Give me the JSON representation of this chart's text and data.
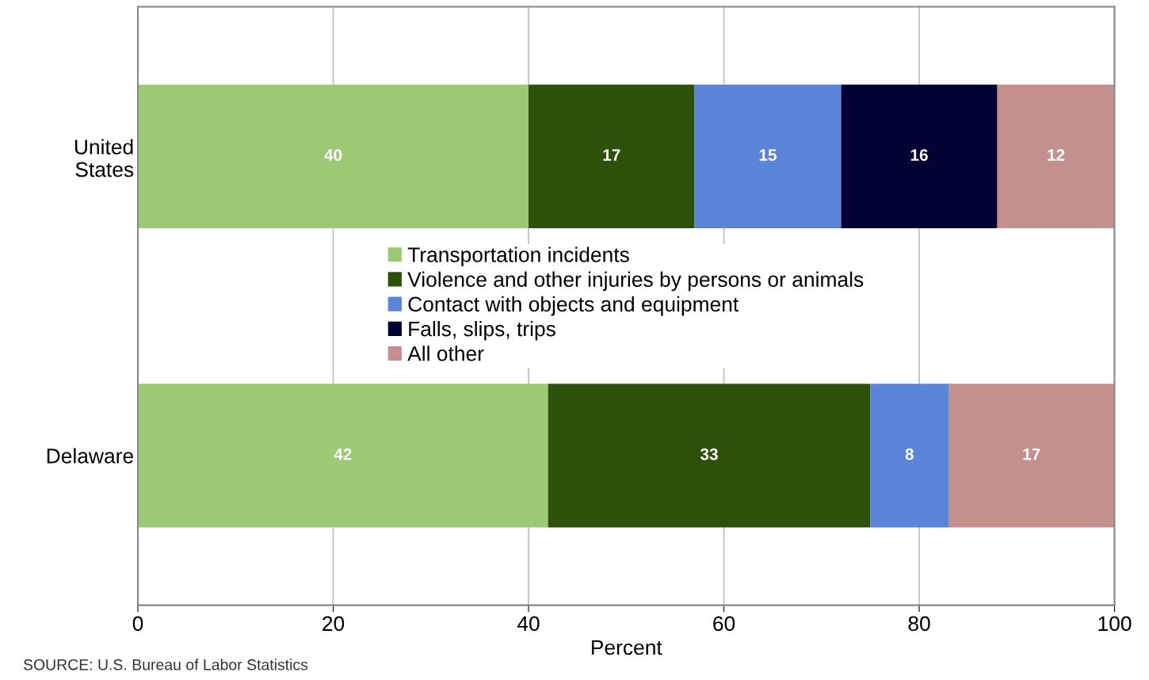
{
  "chart_data": {
    "type": "bar",
    "orientation": "horizontal",
    "stacked": true,
    "xlabel": "Percent",
    "categories": [
      "United\nStates",
      "Delaware"
    ],
    "series": [
      {
        "name": "Transportation incidents",
        "color": "#9bc974",
        "values": [
          40,
          42
        ]
      },
      {
        "name": "Violence and other injuries by persons or animals",
        "color": "#2d500b",
        "values": [
          17,
          33
        ]
      },
      {
        "name": "Contact with objects and equipment",
        "color": "#5b85d8",
        "values": [
          15,
          8
        ]
      },
      {
        "name": "Falls, slips, trips",
        "color": "#020233",
        "values": [
          16,
          null
        ]
      },
      {
        "name": "All other",
        "color": "#c4908e",
        "values": [
          12,
          17
        ]
      }
    ],
    "xlim": [
      0,
      100
    ],
    "xticks": [
      0,
      20,
      40,
      60,
      80,
      100
    ],
    "grid": "x",
    "legend": "center",
    "data_labels": true,
    "annotations": [
      "SOURCE: U.S. Bureau of Labor Statistics"
    ]
  }
}
